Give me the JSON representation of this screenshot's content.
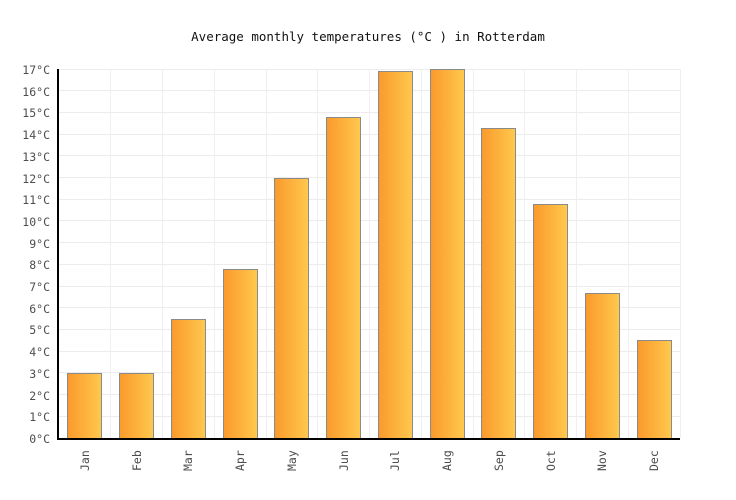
{
  "chart_data": {
    "type": "bar",
    "title": "Average monthly temperatures (°C ) in Rotterdam",
    "categories": [
      "Jan",
      "Feb",
      "Mar",
      "Apr",
      "May",
      "Jun",
      "Jul",
      "Aug",
      "Sep",
      "Oct",
      "Nov",
      "Dec"
    ],
    "values": [
      3.0,
      3.0,
      5.5,
      7.8,
      12.0,
      14.8,
      16.9,
      17.0,
      14.3,
      10.8,
      6.7,
      4.5
    ],
    "series_name": "Average monthly temperature",
    "unit": "°C",
    "xlabel": "",
    "ylabel": "",
    "ylim": [
      0,
      17
    ],
    "y_tick_step": 1,
    "y_tick_labels": [
      "0°C",
      "1°C",
      "2°C",
      "3°C",
      "4°C",
      "5°C",
      "6°C",
      "7°C",
      "8°C",
      "9°C",
      "10°C",
      "11°C",
      "12°C",
      "13°C",
      "14°C",
      "15°C",
      "16°C",
      "17°C"
    ],
    "grid": true,
    "legend": "none",
    "colors": {
      "bar_gradient_left": "#FA9A2C",
      "bar_gradient_right": "#FFC84E",
      "bar_border": "#8A8A8A",
      "axis": "#000000",
      "gridline": "#ECECEC",
      "tick_label": "#4D4D4D",
      "title": "#111111",
      "background": "#FFFFFF"
    }
  }
}
